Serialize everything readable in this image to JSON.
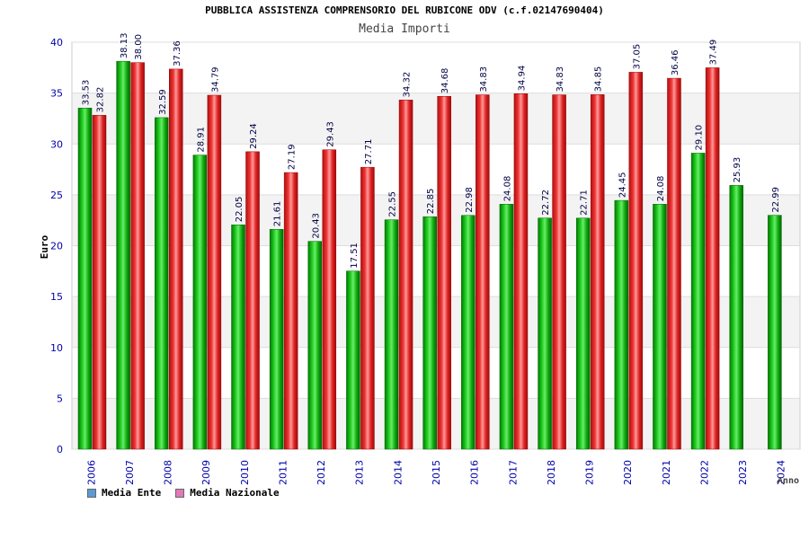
{
  "chart_data": {
    "type": "bar",
    "title": "PUBBLICA ASSISTENZA COMPRENSORIO DEL RUBICONE ODV (c.f.02147690404)",
    "subtitle": "Media Importi",
    "ylabel": "Euro",
    "xlabel": "Anno",
    "ylim": [
      0,
      40
    ],
    "yticks": [
      0,
      5,
      10,
      15,
      20,
      25,
      30,
      35,
      40
    ],
    "grid": true,
    "legend_position": "bottom-left",
    "categories": [
      "2006",
      "2007",
      "2008",
      "2009",
      "2010",
      "2011",
      "2012",
      "2013",
      "2014",
      "2015",
      "2016",
      "2017",
      "2018",
      "2019",
      "2020",
      "2021",
      "2022",
      "2023",
      "2024"
    ],
    "series": [
      {
        "name": "Media Ente",
        "color": "#00aa00",
        "legend_color": "#5b9bd5",
        "values": [
          33.53,
          38.13,
          32.59,
          28.91,
          22.05,
          21.61,
          20.43,
          17.51,
          22.55,
          22.85,
          22.98,
          24.08,
          22.72,
          22.71,
          24.45,
          24.08,
          29.1,
          25.93,
          22.99
        ],
        "labels": [
          "33.53",
          "38.13",
          "32.59",
          "28.91",
          "22.05",
          "21.61",
          "20.43",
          "17.51",
          "22.55",
          "22.85",
          "22.98",
          "24.08",
          "22.72",
          "22.71",
          "24.45",
          "24.08",
          "29.10",
          "25.93",
          "22.99"
        ]
      },
      {
        "name": "Media Nazionale",
        "color": "#dd2222",
        "legend_color": "#e07ab8",
        "values": [
          32.82,
          38.0,
          37.36,
          34.79,
          29.24,
          27.19,
          29.43,
          27.71,
          34.32,
          34.68,
          34.83,
          34.94,
          34.83,
          34.85,
          37.05,
          36.46,
          37.49,
          null,
          null
        ],
        "labels": [
          "32.82",
          "38.00",
          "37.36",
          "34.79",
          "29.24",
          "27.19",
          "29.43",
          "27.71",
          "34.32",
          "34.68",
          "34.83",
          "34.94",
          "34.83",
          "34.85",
          "37.05",
          "36.46",
          "37.49",
          "",
          ""
        ]
      }
    ]
  }
}
